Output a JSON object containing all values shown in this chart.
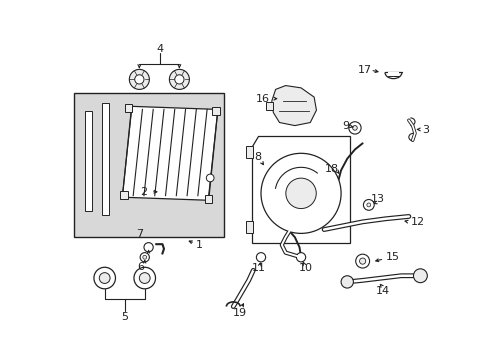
{
  "background_color": "#ffffff",
  "line_color": "#222222",
  "gray_fill": "#d8d8d8",
  "light_gray": "#ececec",
  "fig_w": 4.89,
  "fig_h": 3.6,
  "dpi": 100
}
